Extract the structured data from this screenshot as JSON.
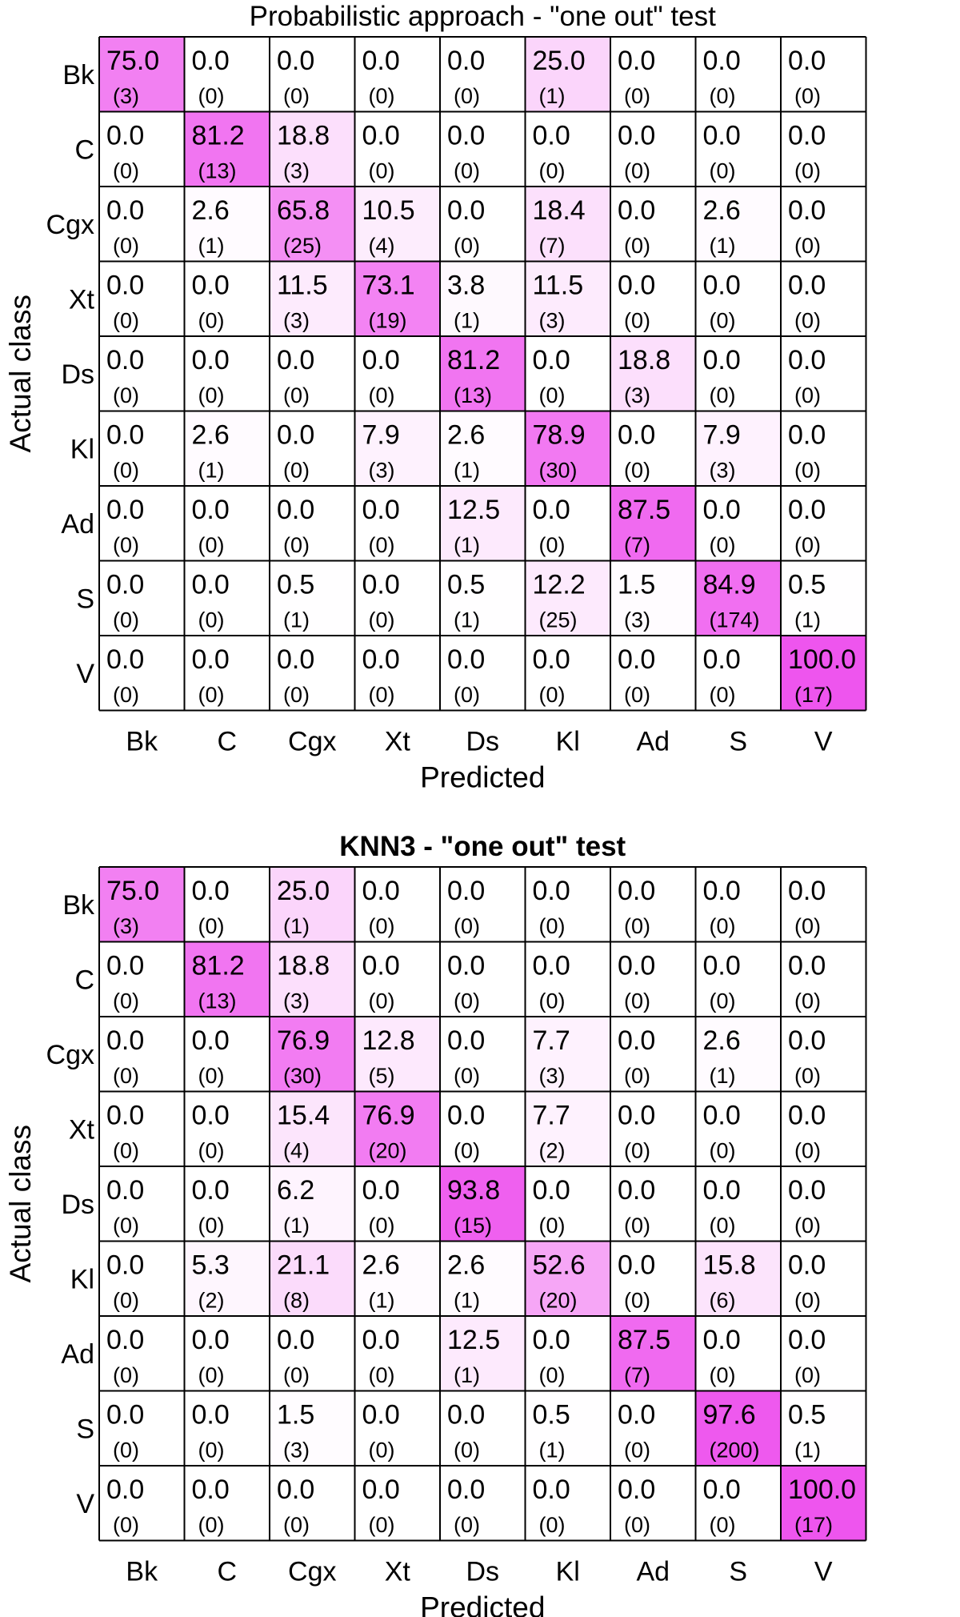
{
  "chart_data": [
    {
      "type": "heatmap",
      "title": "Probabilistic approach - \"one out\" test",
      "title_bold": false,
      "xlabel": "Predicted",
      "ylabel": "Actual class",
      "x_categories": [
        "Bk",
        "C",
        "Cgx",
        "Xt",
        "Ds",
        "Kl",
        "Ad",
        "S",
        "V"
      ],
      "y_categories": [
        "Bk",
        "C",
        "Cgx",
        "Xt",
        "Ds",
        "Kl",
        "Ad",
        "S",
        "V"
      ],
      "percent": [
        [
          "75.0",
          "0.0",
          "0.0",
          "0.0",
          "0.0",
          "25.0",
          "0.0",
          "0.0",
          "0.0"
        ],
        [
          "0.0",
          "81.2",
          "18.8",
          "0.0",
          "0.0",
          "0.0",
          "0.0",
          "0.0",
          "0.0"
        ],
        [
          "0.0",
          "2.6",
          "65.8",
          "10.5",
          "0.0",
          "18.4",
          "0.0",
          "2.6",
          "0.0"
        ],
        [
          "0.0",
          "0.0",
          "11.5",
          "73.1",
          "3.8",
          "11.5",
          "0.0",
          "0.0",
          "0.0"
        ],
        [
          "0.0",
          "0.0",
          "0.0",
          "0.0",
          "81.2",
          "0.0",
          "18.8",
          "0.0",
          "0.0"
        ],
        [
          "0.0",
          "2.6",
          "0.0",
          "7.9",
          "2.6",
          "78.9",
          "0.0",
          "7.9",
          "0.0"
        ],
        [
          "0.0",
          "0.0",
          "0.0",
          "0.0",
          "12.5",
          "0.0",
          "87.5",
          "0.0",
          "0.0"
        ],
        [
          "0.0",
          "0.0",
          "0.5",
          "0.0",
          "0.5",
          "12.2",
          "1.5",
          "84.9",
          "0.5"
        ],
        [
          "0.0",
          "0.0",
          "0.0",
          "0.0",
          "0.0",
          "0.0",
          "0.0",
          "0.0",
          "100.0"
        ]
      ],
      "counts": [
        [
          "(3)",
          "(0)",
          "(0)",
          "(0)",
          "(0)",
          "(1)",
          "(0)",
          "(0)",
          "(0)"
        ],
        [
          "(0)",
          "(13)",
          "(3)",
          "(0)",
          "(0)",
          "(0)",
          "(0)",
          "(0)",
          "(0)"
        ],
        [
          "(0)",
          "(1)",
          "(25)",
          "(4)",
          "(0)",
          "(7)",
          "(0)",
          "(1)",
          "(0)"
        ],
        [
          "(0)",
          "(0)",
          "(3)",
          "(19)",
          "(1)",
          "(3)",
          "(0)",
          "(0)",
          "(0)"
        ],
        [
          "(0)",
          "(0)",
          "(0)",
          "(0)",
          "(13)",
          "(0)",
          "(3)",
          "(0)",
          "(0)"
        ],
        [
          "(0)",
          "(1)",
          "(0)",
          "(3)",
          "(1)",
          "(30)",
          "(0)",
          "(3)",
          "(0)"
        ],
        [
          "(0)",
          "(0)",
          "(0)",
          "(0)",
          "(1)",
          "(0)",
          "(7)",
          "(0)",
          "(0)"
        ],
        [
          "(0)",
          "(0)",
          "(1)",
          "(0)",
          "(1)",
          "(25)",
          "(3)",
          "(174)",
          "(1)"
        ],
        [
          "(0)",
          "(0)",
          "(0)",
          "(0)",
          "(0)",
          "(0)",
          "(0)",
          "(0)",
          "(17)"
        ]
      ],
      "color_scale": {
        "low": "#ffffff",
        "high": "#ee55ee",
        "max_value": 100
      }
    },
    {
      "type": "heatmap",
      "title": "KNN3 - \"one out\" test",
      "title_bold": true,
      "xlabel": "Predicted",
      "ylabel": "Actual class",
      "x_categories": [
        "Bk",
        "C",
        "Cgx",
        "Xt",
        "Ds",
        "Kl",
        "Ad",
        "S",
        "V"
      ],
      "y_categories": [
        "Bk",
        "C",
        "Cgx",
        "Xt",
        "Ds",
        "Kl",
        "Ad",
        "S",
        "V"
      ],
      "percent": [
        [
          "75.0",
          "0.0",
          "25.0",
          "0.0",
          "0.0",
          "0.0",
          "0.0",
          "0.0",
          "0.0"
        ],
        [
          "0.0",
          "81.2",
          "18.8",
          "0.0",
          "0.0",
          "0.0",
          "0.0",
          "0.0",
          "0.0"
        ],
        [
          "0.0",
          "0.0",
          "76.9",
          "12.8",
          "0.0",
          "7.7",
          "0.0",
          "2.6",
          "0.0"
        ],
        [
          "0.0",
          "0.0",
          "15.4",
          "76.9",
          "0.0",
          "7.7",
          "0.0",
          "0.0",
          "0.0"
        ],
        [
          "0.0",
          "0.0",
          "6.2",
          "0.0",
          "93.8",
          "0.0",
          "0.0",
          "0.0",
          "0.0"
        ],
        [
          "0.0",
          "5.3",
          "21.1",
          "2.6",
          "2.6",
          "52.6",
          "0.0",
          "15.8",
          "0.0"
        ],
        [
          "0.0",
          "0.0",
          "0.0",
          "0.0",
          "12.5",
          "0.0",
          "87.5",
          "0.0",
          "0.0"
        ],
        [
          "0.0",
          "0.0",
          "1.5",
          "0.0",
          "0.0",
          "0.5",
          "0.0",
          "97.6",
          "0.5"
        ],
        [
          "0.0",
          "0.0",
          "0.0",
          "0.0",
          "0.0",
          "0.0",
          "0.0",
          "0.0",
          "100.0"
        ]
      ],
      "counts": [
        [
          "(3)",
          "(0)",
          "(1)",
          "(0)",
          "(0)",
          "(0)",
          "(0)",
          "(0)",
          "(0)"
        ],
        [
          "(0)",
          "(13)",
          "(3)",
          "(0)",
          "(0)",
          "(0)",
          "(0)",
          "(0)",
          "(0)"
        ],
        [
          "(0)",
          "(0)",
          "(30)",
          "(5)",
          "(0)",
          "(3)",
          "(0)",
          "(1)",
          "(0)"
        ],
        [
          "(0)",
          "(0)",
          "(4)",
          "(20)",
          "(0)",
          "(2)",
          "(0)",
          "(0)",
          "(0)"
        ],
        [
          "(0)",
          "(0)",
          "(1)",
          "(0)",
          "(15)",
          "(0)",
          "(0)",
          "(0)",
          "(0)"
        ],
        [
          "(0)",
          "(2)",
          "(8)",
          "(1)",
          "(1)",
          "(20)",
          "(0)",
          "(6)",
          "(0)"
        ],
        [
          "(0)",
          "(0)",
          "(0)",
          "(0)",
          "(1)",
          "(0)",
          "(7)",
          "(0)",
          "(0)"
        ],
        [
          "(0)",
          "(0)",
          "(3)",
          "(0)",
          "(0)",
          "(1)",
          "(0)",
          "(200)",
          "(1)"
        ],
        [
          "(0)",
          "(0)",
          "(0)",
          "(0)",
          "(0)",
          "(0)",
          "(0)",
          "(0)",
          "(17)"
        ]
      ],
      "color_scale": {
        "low": "#ffffff",
        "high": "#ee55ee",
        "max_value": 100
      }
    }
  ]
}
